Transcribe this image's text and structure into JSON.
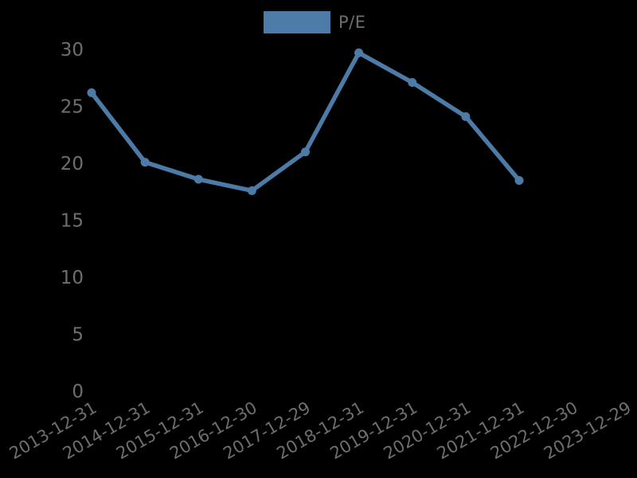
{
  "canvas": {
    "background": "#000000"
  },
  "chart_data": {
    "type": "line",
    "title": "",
    "legend": {
      "label": "P/E",
      "position": "top-center"
    },
    "x_categories": [
      "2013-12-31",
      "2014-12-31",
      "2015-12-31",
      "2016-12-30",
      "2017-12-29",
      "2018-12-31",
      "2019-12-31",
      "2020-12-31",
      "2021-12-31",
      "2022-12-30",
      "2023-12-29"
    ],
    "series": [
      {
        "name": "P/E",
        "values": [
          26.2,
          20.1,
          18.6,
          17.6,
          21.0,
          29.7,
          27.1,
          24.1,
          18.5,
          null,
          null
        ]
      }
    ],
    "ylim": [
      0,
      30
    ],
    "y_ticks": [
      0,
      5,
      10,
      15,
      20,
      25,
      30
    ],
    "grid": false,
    "axis_lines": false,
    "x_tick_rotation_deg": 30,
    "colors": {
      "line": "#4d7ba7",
      "marker": "#4d7ba7",
      "tick_text": "#6e6e6e",
      "legend_text": "#6e6e6e"
    }
  }
}
